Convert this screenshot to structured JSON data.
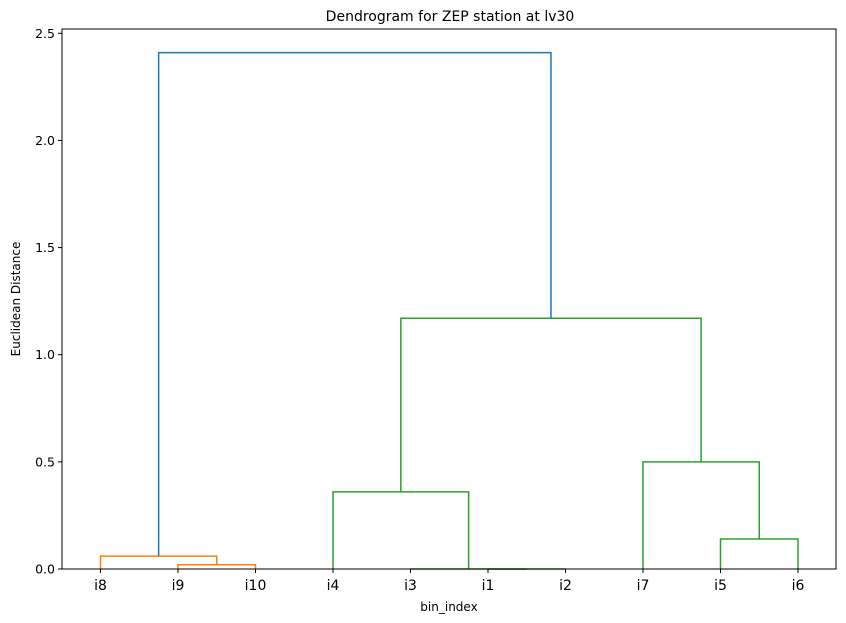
{
  "chart_data": {
    "type": "dendrogram",
    "title": "Dendrogram for ZEP station at lv30",
    "xlabel": "bin_index",
    "ylabel": "Euclidean Distance",
    "ylim": [
      0,
      2.52
    ],
    "yticks": [
      0.0,
      0.5,
      1.0,
      1.5,
      2.0,
      2.5
    ],
    "ytick_labels": [
      "0.0",
      "0.5",
      "1.0",
      "1.5",
      "2.0",
      "2.5"
    ],
    "leaves": [
      "i8",
      "i9",
      "i10",
      "i4",
      "i3",
      "i1",
      "i2",
      "i7",
      "i5",
      "i6"
    ],
    "colors": {
      "cluster1": "#ff7f0e",
      "cluster2": "#2ca02c",
      "root": "#1f77b4"
    },
    "links": [
      {
        "left_pos": 1.0,
        "right_pos": 2.0,
        "left_h": 0.0,
        "right_h": 0.0,
        "height": 0.02,
        "color": "cluster1"
      },
      {
        "left_pos": 0.0,
        "right_pos": 1.5,
        "left_h": 0.0,
        "right_h": 0.02,
        "height": 0.06,
        "color": "cluster1"
      },
      {
        "left_pos": 5.0,
        "right_pos": 6.0,
        "left_h": 0.0,
        "right_h": 0.0,
        "height": 0.0,
        "color": "cluster2"
      },
      {
        "left_pos": 4.0,
        "right_pos": 5.5,
        "left_h": 0.0,
        "right_h": 0.0,
        "height": 0.0,
        "color": "cluster2"
      },
      {
        "left_pos": 3.0,
        "right_pos": 4.75,
        "left_h": 0.0,
        "right_h": 0.0,
        "height": 0.36,
        "color": "cluster2"
      },
      {
        "left_pos": 8.0,
        "right_pos": 9.0,
        "left_h": 0.0,
        "right_h": 0.0,
        "height": 0.14,
        "color": "cluster2"
      },
      {
        "left_pos": 7.0,
        "right_pos": 8.5,
        "left_h": 0.0,
        "right_h": 0.14,
        "height": 0.5,
        "color": "cluster2"
      },
      {
        "left_pos": 3.875,
        "right_pos": 7.75,
        "left_h": 0.36,
        "right_h": 0.5,
        "height": 1.17,
        "color": "cluster2"
      },
      {
        "left_pos": 0.75,
        "right_pos": 5.8125,
        "left_h": 0.06,
        "right_h": 1.17,
        "height": 2.41,
        "color": "root"
      }
    ]
  }
}
